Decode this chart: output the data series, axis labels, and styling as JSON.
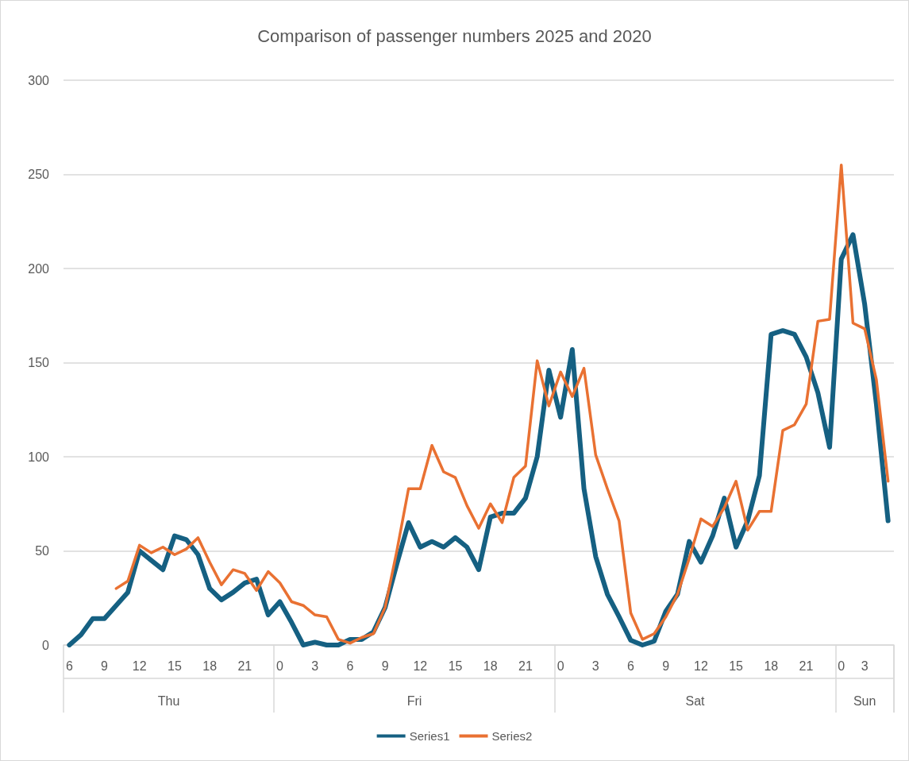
{
  "chart_data": {
    "type": "line",
    "title": "Comparison of passenger numbers 2025 and 2020",
    "categories": [
      "6",
      null,
      null,
      "9",
      null,
      null,
      "12",
      null,
      null,
      "15",
      null,
      null,
      "18",
      null,
      null,
      "21",
      null,
      null,
      "0",
      null,
      null,
      "3",
      null,
      null,
      "6",
      null,
      null,
      "9",
      null,
      null,
      "12",
      null,
      null,
      "15",
      null,
      null,
      "18",
      null,
      null,
      "21",
      null,
      null,
      "0",
      null,
      null,
      "3",
      null,
      null,
      "6",
      null,
      null,
      "9",
      null,
      null,
      "12",
      null,
      null,
      "15",
      null,
      null,
      "18",
      null,
      null,
      "21",
      null,
      null,
      "0",
      null,
      "3",
      null,
      null
    ],
    "series": [
      {
        "name": "Series1",
        "color": "#156082",
        "values": [
          0,
          5.5,
          14,
          14,
          21,
          28,
          50,
          45,
          40,
          58,
          56,
          48,
          30,
          24,
          28,
          33,
          35,
          16,
          23,
          12,
          0,
          1.5,
          0,
          0,
          3,
          3,
          7,
          20,
          43,
          65,
          52,
          55,
          52,
          57,
          52,
          40,
          68,
          70,
          70,
          78,
          100,
          146,
          121,
          157,
          83,
          47,
          27,
          15,
          2.5,
          0,
          2,
          18,
          27,
          55,
          44,
          58,
          78,
          52,
          66,
          90,
          165,
          167,
          165,
          153,
          134,
          105,
          205,
          218,
          181,
          128,
          66
        ]
      },
      {
        "name": "Series2",
        "color": "#e97132",
        "values": [
          null,
          null,
          null,
          null,
          30,
          34,
          53,
          49,
          52,
          48,
          51,
          57,
          44,
          32,
          40,
          38,
          29,
          39,
          33,
          23,
          21,
          16,
          15,
          3,
          1,
          4,
          6,
          20,
          50,
          83,
          83,
          106,
          92,
          89,
          74,
          62,
          75,
          65,
          89,
          95,
          151,
          127,
          145,
          132,
          147,
          101,
          83,
          66,
          17,
          3,
          6,
          15,
          27,
          46,
          67,
          63,
          73,
          87,
          61,
          71,
          71,
          114,
          117,
          128,
          172,
          173,
          255,
          171,
          168,
          141,
          87
        ]
      }
    ],
    "annotations": [
      "Thu",
      "Fri",
      "Sat",
      "Sun"
    ],
    "ylim": [
      0,
      300
    ],
    "yticks": [
      0,
      50,
      100,
      150,
      200,
      250,
      300
    ],
    "grid": "y",
    "legend": "bottom",
    "line_style": "solid"
  }
}
